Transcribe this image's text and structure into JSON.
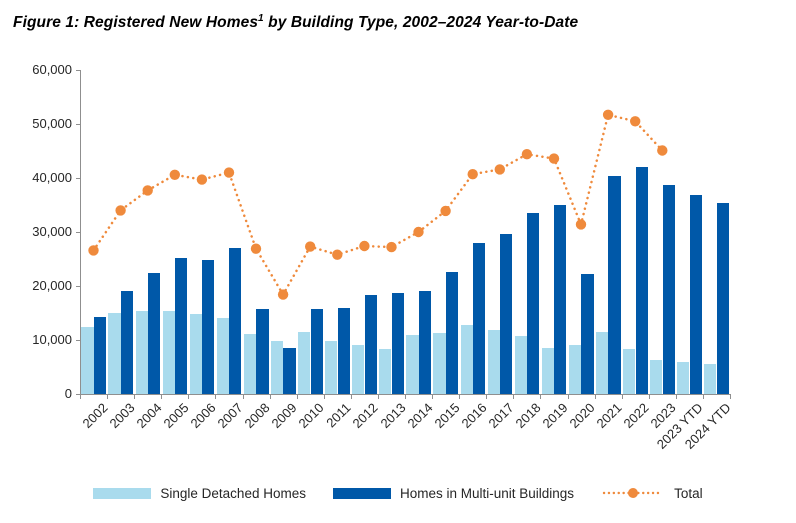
{
  "header": {
    "title_prefix": "Figure 1: Registered New Homes",
    "title_superscript": "1",
    "title_suffix": " by Building Type, 2002–2024 Year-to-Date"
  },
  "colors": {
    "single_detached": "#A9DBED",
    "multi_unit": "#0058A8",
    "total_line": "#EF8A3C",
    "axis": "#8F8F8F",
    "tick_text": "#262626",
    "title_text": "#000000"
  },
  "chart_data": {
    "type": "bar",
    "title": "Figure 1: Registered New Homes¹ by Building Type, 2002–2024 Year-to-Date",
    "categories": [
      "2002",
      "2003",
      "2004",
      "2005",
      "2006",
      "2007",
      "2008",
      "2009",
      "2010",
      "2011",
      "2012",
      "2013",
      "2014",
      "2015",
      "2016",
      "2017",
      "2018",
      "2019",
      "2020",
      "2021",
      "2022",
      "2023",
      "2023 YTD",
      "2024 YTD"
    ],
    "series": [
      {
        "name": "Single Detached Homes",
        "type": "bar",
        "color": "#A9DBED",
        "values": [
          12400,
          15000,
          15300,
          15400,
          14800,
          14000,
          11100,
          9900,
          11500,
          9900,
          9100,
          8400,
          11000,
          11300,
          12700,
          11900,
          10800,
          8500,
          9100,
          11400,
          8400,
          6300,
          5900,
          5500
        ]
      },
      {
        "name": "Homes in Multi-unit Buildings",
        "type": "bar",
        "color": "#0058A8",
        "values": [
          14200,
          19000,
          22400,
          25200,
          24900,
          27000,
          15800,
          8500,
          15800,
          15900,
          18300,
          18800,
          19000,
          22600,
          28000,
          29700,
          33600,
          35100,
          22300,
          40300,
          42100,
          38800,
          36900,
          35300
        ]
      },
      {
        "name": "Total",
        "type": "line",
        "line_style": "dotted",
        "marker": "circle",
        "color": "#EF8A3C",
        "values": [
          26600,
          34000,
          37700,
          40600,
          39700,
          41000,
          26900,
          18400,
          27300,
          25800,
          27400,
          27200,
          30000,
          33900,
          40700,
          41600,
          44400,
          43600,
          31400,
          51700,
          50500,
          45100,
          null,
          null
        ]
      }
    ],
    "xlabel": "",
    "ylabel": "",
    "ylim": [
      0,
      60000
    ],
    "ytick_interval": 10000,
    "ytick_labels": [
      "0",
      "10,000",
      "20,000",
      "30,000",
      "40,000",
      "50,000",
      "60,000"
    ],
    "grid": false,
    "legend_position": "bottom"
  }
}
